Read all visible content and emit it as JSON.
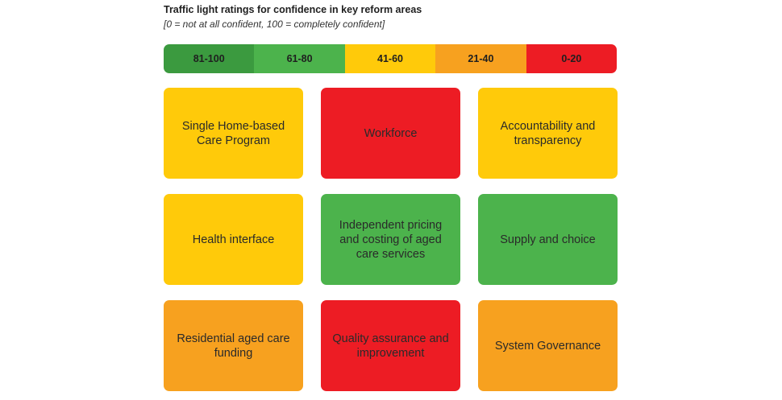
{
  "title": "Traffic light ratings for confidence in key reform areas",
  "subtitle": "[0 = not at all confident, 100 = completely confident]",
  "colors": {
    "dark_green": "#3b9a3f",
    "green": "#4cb34c",
    "yellow": "#ffca0a",
    "orange": "#f7a11f",
    "red": "#ed1c24"
  },
  "legend": [
    {
      "label": "81-100",
      "color": "#3b9a3f"
    },
    {
      "label": "61-80",
      "color": "#4cb34c"
    },
    {
      "label": "41-60",
      "color": "#ffca0a"
    },
    {
      "label": "21-40",
      "color": "#f7a11f"
    },
    {
      "label": "0-20",
      "color": "#ed1c24"
    }
  ],
  "areas": [
    {
      "label": "Single Home-based\nCare Program",
      "rating_band": "41-60",
      "color": "#ffca0a"
    },
    {
      "label": "Workforce",
      "rating_band": "0-20",
      "color": "#ed1c24"
    },
    {
      "label": "Accountability and\ntransparency",
      "rating_band": "41-60",
      "color": "#ffca0a"
    },
    {
      "label": "Health interface",
      "rating_band": "41-60",
      "color": "#ffca0a"
    },
    {
      "label": "Independent pricing\nand costing of aged\ncare services",
      "rating_band": "61-80",
      "color": "#4cb34c"
    },
    {
      "label": "Supply and choice",
      "rating_band": "61-80",
      "color": "#4cb34c"
    },
    {
      "label": "Residential aged care\nfunding",
      "rating_band": "21-40",
      "color": "#f7a11f"
    },
    {
      "label": "Quality assurance and\nimprovement",
      "rating_band": "0-20",
      "color": "#ed1c24"
    },
    {
      "label": "System Governance",
      "rating_band": "21-40",
      "color": "#f7a11f"
    }
  ]
}
